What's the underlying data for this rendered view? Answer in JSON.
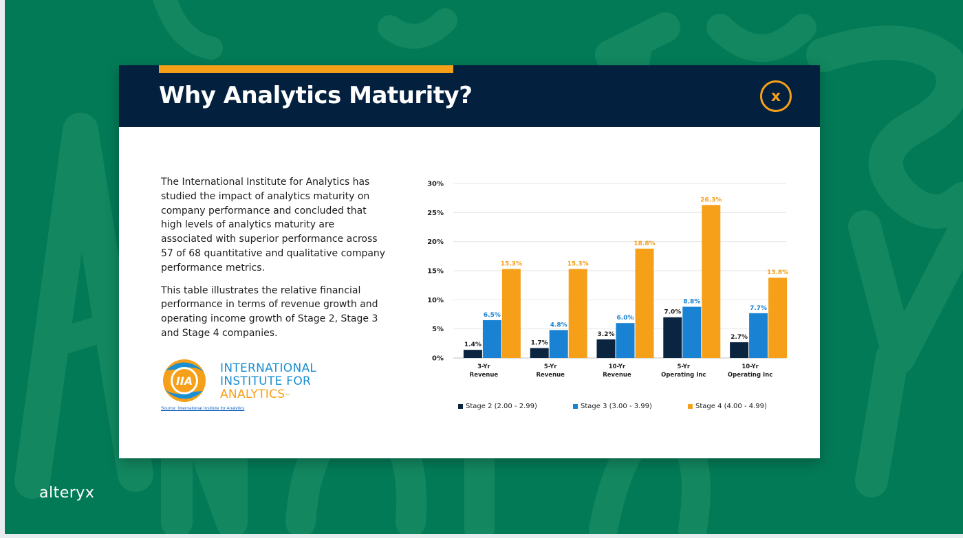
{
  "brand": "alteryx",
  "card": {
    "title": "Why Analytics Maturity?",
    "close_label": "x",
    "paragraphs": [
      "The International Institute for Analytics has studied the impact of analytics maturity on company performance and concluded that high levels of analytics maturity are associated with superior performance across 57 of 68 quantitative and qualitative company performance metrics.",
      "This table illustrates the relative financial performance in terms of revenue growth and operating income growth of Stage 2, Stage 3 and Stage 4 companies."
    ],
    "logo": {
      "mark": "IIA",
      "line1": "INTERNATIONAL",
      "line2": "INSTITUTE FOR",
      "line3": "ANALYTICS",
      "trademark": "™"
    },
    "source_link": "Source: International Institute for Analytics"
  },
  "colors": {
    "background": "#037a56",
    "header": "#03213e",
    "accent": "#f6a01a",
    "stage2": "#0b2440",
    "stage3": "#1a82d2",
    "stage4": "#f6a01a"
  },
  "chart_data": {
    "type": "bar",
    "categories": [
      [
        "3-Yr",
        "Revenue"
      ],
      [
        "5-Yr",
        "Revenue"
      ],
      [
        "10-Yr",
        "Revenue"
      ],
      [
        "5-Yr",
        "Operating Inc"
      ],
      [
        "10-Yr",
        "Operating Inc"
      ]
    ],
    "series": [
      {
        "name": "Stage 2 (2.00 - 2.99)",
        "values": [
          1.4,
          1.7,
          3.2,
          7.0,
          2.7
        ],
        "labels": [
          "1.4%",
          "1.7%",
          "3.2%",
          "7.0%",
          "2.7%"
        ]
      },
      {
        "name": "Stage 3 (3.00 - 3.99)",
        "values": [
          6.5,
          4.8,
          6.0,
          8.8,
          7.7
        ],
        "labels": [
          "6.5%",
          "4.8%",
          "6.0%",
          "8.8%",
          "7.7%"
        ]
      },
      {
        "name": "Stage 4 (4.00 - 4.99)",
        "values": [
          15.3,
          15.3,
          18.8,
          26.3,
          13.8
        ],
        "labels": [
          "15.3%",
          "15.3%",
          "18.8%",
          "26.3%",
          "13.8%"
        ]
      }
    ],
    "yticks": [
      "0%",
      "5%",
      "10%",
      "15%",
      "20%",
      "25%",
      "30%"
    ],
    "ylim": [
      0,
      30
    ],
    "grid": true,
    "legend_position": "bottom"
  }
}
